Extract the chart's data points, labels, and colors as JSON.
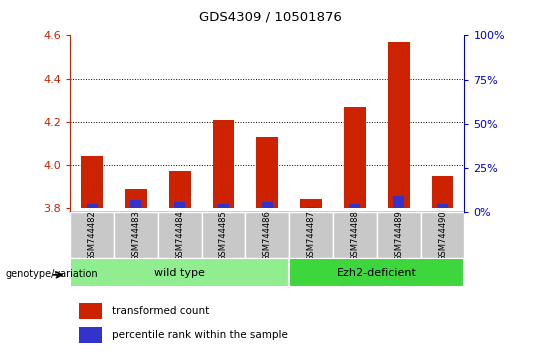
{
  "title": "GDS4309 / 10501876",
  "samples": [
    "GSM744482",
    "GSM744483",
    "GSM744484",
    "GSM744485",
    "GSM744486",
    "GSM744487",
    "GSM744488",
    "GSM744489",
    "GSM744490"
  ],
  "transformed_count": [
    4.04,
    3.89,
    3.97,
    4.21,
    4.13,
    3.84,
    4.27,
    4.57,
    3.95
  ],
  "percentile_rank_pct": [
    5,
    7,
    6,
    5,
    6,
    3,
    5,
    9,
    5
  ],
  "baseline": 3.8,
  "ylim_left": [
    3.78,
    4.6
  ],
  "ylim_right": [
    0,
    100
  ],
  "yticks_left": [
    3.8,
    4.0,
    4.2,
    4.4,
    4.6
  ],
  "yticks_right": [
    0,
    25,
    50,
    75,
    100
  ],
  "grid_values": [
    4.0,
    4.2,
    4.4
  ],
  "groups": [
    {
      "label": "wild type",
      "indices": [
        0,
        1,
        2,
        3,
        4
      ],
      "color": "#90EE90"
    },
    {
      "label": "Ezh2-deficient",
      "indices": [
        5,
        6,
        7,
        8
      ],
      "color": "#3DD63D"
    }
  ],
  "group_label_prefix": "genotype/variation",
  "bar_color_red": "#CC2200",
  "bar_color_blue": "#3333CC",
  "left_axis_color": "#CC2200",
  "right_axis_color": "#0000CC",
  "legend_items": [
    {
      "label": "transformed count",
      "color": "#CC2200"
    },
    {
      "label": "percentile rank within the sample",
      "color": "#3333CC"
    }
  ],
  "bar_width": 0.5
}
